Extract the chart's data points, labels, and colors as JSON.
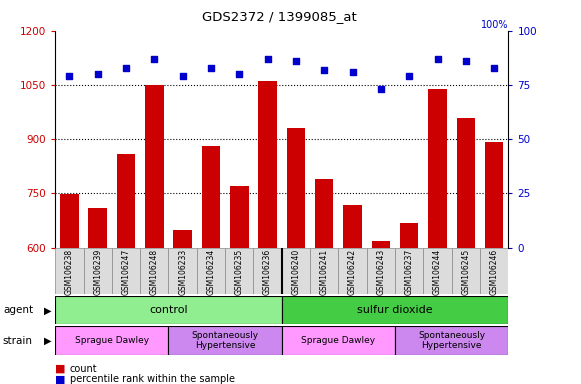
{
  "title": "GDS2372 / 1399085_at",
  "samples": [
    "GSM106238",
    "GSM106239",
    "GSM106247",
    "GSM106248",
    "GSM106233",
    "GSM106234",
    "GSM106235",
    "GSM106236",
    "GSM106240",
    "GSM106241",
    "GSM106242",
    "GSM106243",
    "GSM106237",
    "GSM106244",
    "GSM106245",
    "GSM106246"
  ],
  "counts": [
    748,
    710,
    858,
    1050,
    648,
    880,
    770,
    1060,
    930,
    790,
    718,
    618,
    668,
    1040,
    960,
    892
  ],
  "percentiles": [
    79,
    80,
    83,
    87,
    79,
    83,
    80,
    87,
    86,
    82,
    81,
    73,
    79,
    87,
    86,
    83
  ],
  "ylim_left": [
    600,
    1200
  ],
  "ylim_right": [
    0,
    100
  ],
  "yticks_left": [
    600,
    750,
    900,
    1050,
    1200
  ],
  "yticks_right": [
    0,
    25,
    50,
    75,
    100
  ],
  "bar_color": "#CC0000",
  "dot_color": "#0000CC",
  "bg_color": "#DCDCDC",
  "plot_bg": "#FFFFFF",
  "agent_colors": [
    "#90EE90",
    "#44CC44"
  ],
  "agent_texts": [
    "control",
    "sulfur dioxide"
  ],
  "strain_colors": [
    "#FF99FF",
    "#CC88EE",
    "#FF99FF",
    "#CC88EE"
  ],
  "strain_texts": [
    "Sprague Dawley",
    "Spontaneously\nHypertensive",
    "Sprague Dawley",
    "Spontaneously\nHypertensive"
  ],
  "grid_yticks": [
    750,
    900,
    1050
  ],
  "separator_idx": 7.5
}
